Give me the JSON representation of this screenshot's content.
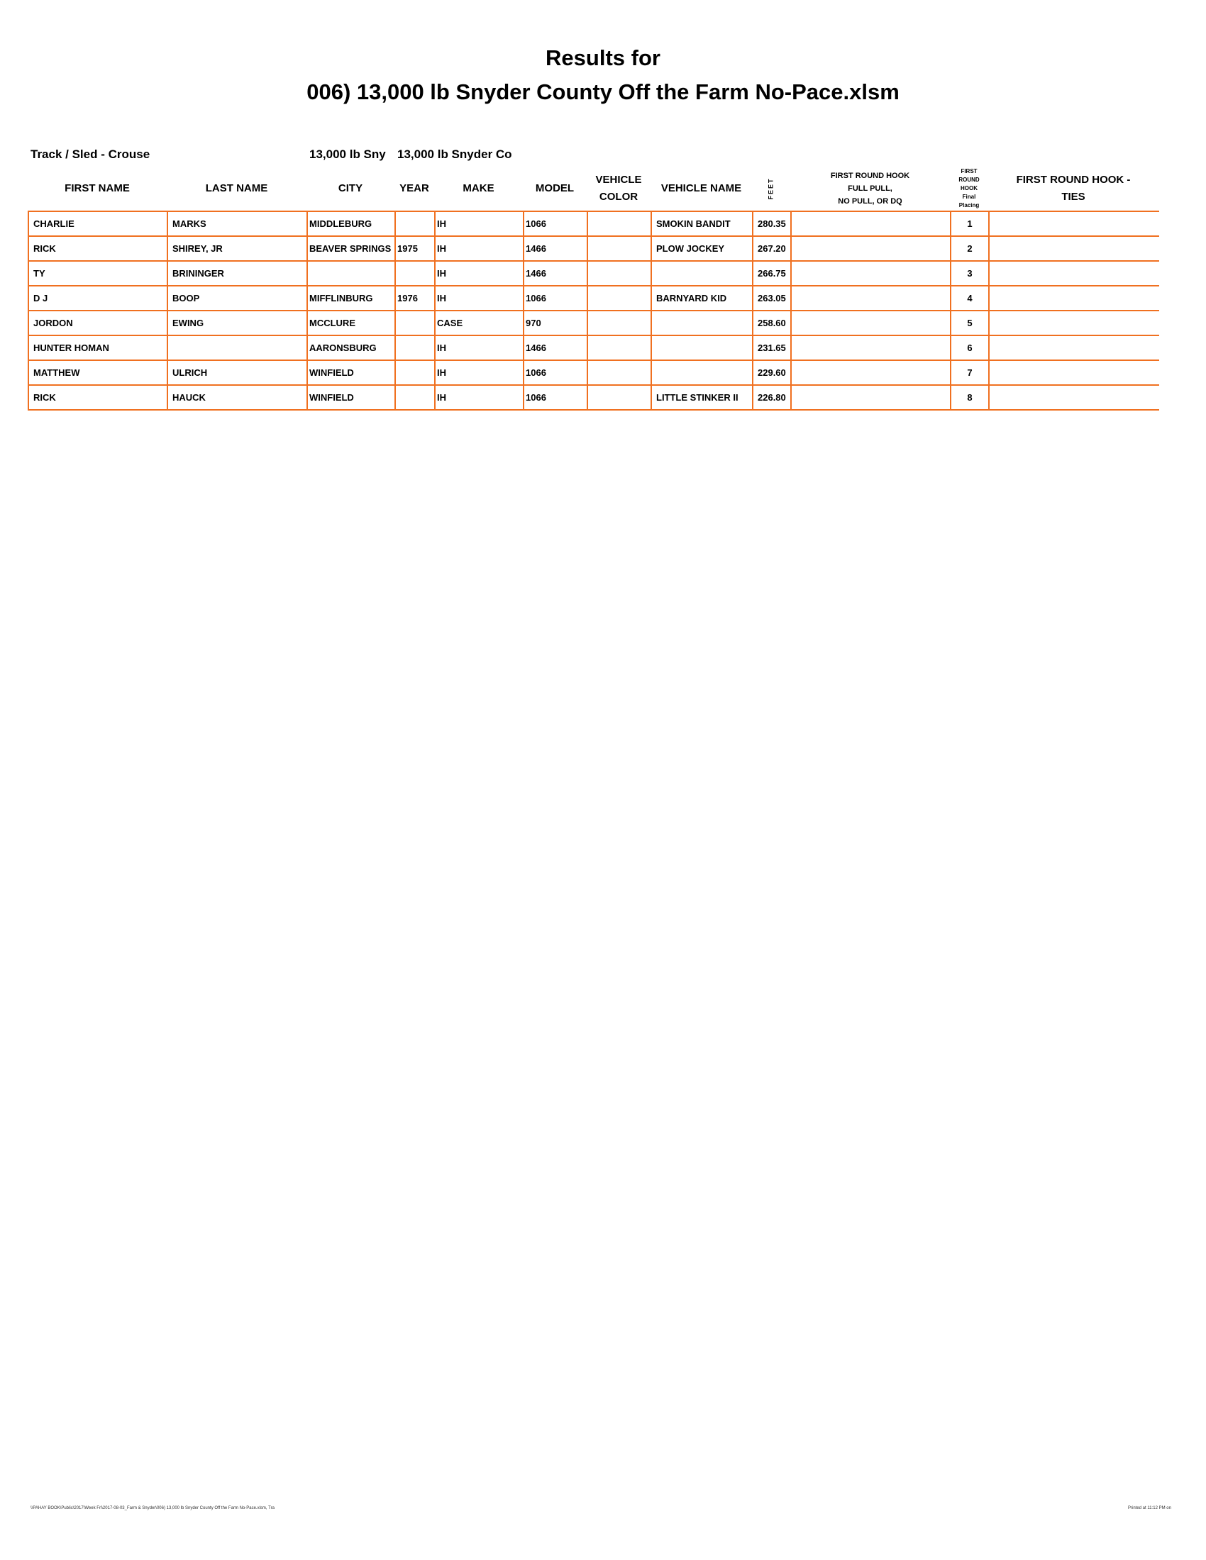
{
  "title": {
    "line1": "Results for",
    "line2": "006) 13,000 lb Snyder County Off the Farm No-Pace.xlsm"
  },
  "meta": {
    "track": "Track / Sled - Crouse",
    "class_a": "13,000 lb Sny",
    "class_b": "13,000 lb Snyder Co"
  },
  "columns": [
    "FIRST NAME",
    "LAST NAME",
    "CITY",
    "YEAR",
    "MAKE",
    "MODEL",
    "VEHICLE COLOR",
    "VEHICLE NAME",
    "FEET",
    "FIRST ROUND HOOK FULL PULL, NO PULL, OR DQ",
    "FIRST ROUND HOOK Final Placing",
    "FIRST ROUND HOOK - TIES"
  ],
  "header_lines": {
    "vehicle_color": [
      "VEHICLE",
      "COLOR"
    ],
    "hook": [
      "FIRST ROUND HOOK",
      "FULL PULL,",
      "NO PULL, OR DQ"
    ],
    "placing": [
      "FIRST",
      "ROUND",
      "HOOK",
      "Final",
      "Placing"
    ],
    "ties": [
      "FIRST ROUND HOOK -",
      "TIES"
    ]
  },
  "rows": [
    [
      "CHARLIE",
      "MARKS",
      "MIDDLEBURG",
      "",
      "IH",
      "1066",
      "",
      "SMOKIN BANDIT",
      "280.35",
      "",
      "1",
      ""
    ],
    [
      "RICK",
      "SHIREY, JR",
      "BEAVER SPRINGS",
      "1975",
      "IH",
      "1466",
      "",
      "PLOW JOCKEY",
      "267.20",
      "",
      "2",
      ""
    ],
    [
      "TY",
      "BRININGER",
      "",
      "",
      "IH",
      "1466",
      "",
      "",
      "266.75",
      "",
      "3",
      ""
    ],
    [
      "D J",
      "BOOP",
      "MIFFLINBURG",
      "1976",
      "IH",
      "1066",
      "",
      "BARNYARD KID",
      "263.05",
      "",
      "4",
      ""
    ],
    [
      "JORDON",
      "EWING",
      "MCCLURE",
      "",
      "CASE",
      "970",
      "",
      "",
      "258.60",
      "",
      "5",
      ""
    ],
    [
      "HUNTER HOMAN",
      "",
      "AARONSBURG",
      "",
      "IH",
      "1466",
      "",
      "",
      "231.65",
      "",
      "6",
      ""
    ],
    [
      "MATTHEW",
      "ULRICH",
      "WINFIELD",
      "",
      "IH",
      "1066",
      "",
      "",
      "229.60",
      "",
      "7",
      ""
    ],
    [
      "RICK",
      "HAUCK",
      "WINFIELD",
      "",
      "IH",
      "1066",
      "",
      "LITTLE STINKER II",
      "226.80",
      "",
      "8",
      ""
    ]
  ],
  "footer": {
    "path": "\\\\PAHAY BOOK\\Public\\2017\\Week Fri\\2017-08-03_Farm & Snyder\\006) 13,000 lb Snyder County Off the Farm No-Pace.xlsm, Tra",
    "printed": "Printed at 11:12 PM on"
  },
  "colors": {
    "grid": "#f07020"
  }
}
